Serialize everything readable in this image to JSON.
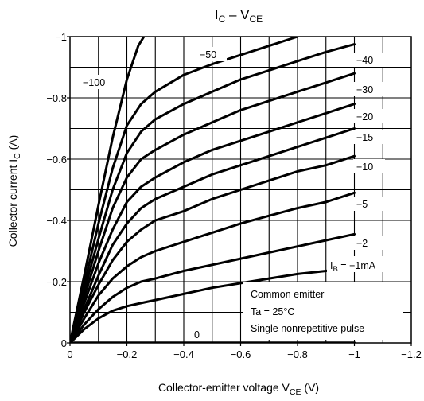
{
  "chart_data": {
    "type": "line",
    "title": {
      "main": "I",
      "main_sub": "C",
      "sep": " – V",
      "sep_sub": "CE"
    },
    "xlabel": {
      "text": "Collector-emitter voltage   V",
      "sub": "CE",
      "unit": "   (V)"
    },
    "ylabel": {
      "text": "Collector current   I",
      "sub": "C",
      "unit": "   (A)"
    },
    "xlim": [
      0,
      -1.2
    ],
    "ylim": [
      0,
      -1.0
    ],
    "x_ticks": [
      {
        "v": 0,
        "label": "0"
      },
      {
        "v": -0.2,
        "label": "−0.2"
      },
      {
        "v": -0.4,
        "label": "−0.4"
      },
      {
        "v": -0.6,
        "label": "−0.6"
      },
      {
        "v": -0.8,
        "label": "−0.8"
      },
      {
        "v": -1.0,
        "label": "−1"
      },
      {
        "v": -1.2,
        "label": "−1.2"
      }
    ],
    "y_ticks": [
      {
        "v": 0,
        "label": "0"
      },
      {
        "v": -0.2,
        "label": "−0.2"
      },
      {
        "v": -0.4,
        "label": "−0.4"
      },
      {
        "v": -0.6,
        "label": "−0.6"
      },
      {
        "v": -0.8,
        "label": "−0.8"
      },
      {
        "v": -1.0,
        "label": "−1"
      }
    ],
    "grid": true,
    "series": [
      {
        "name": "−100",
        "points": [
          [
            0,
            0
          ],
          [
            -0.05,
            -0.22
          ],
          [
            -0.1,
            -0.45
          ],
          [
            -0.15,
            -0.67
          ],
          [
            -0.2,
            -0.86
          ],
          [
            -0.24,
            -0.97
          ],
          [
            -0.26,
            -1.0
          ]
        ]
      },
      {
        "name": "−50",
        "points": [
          [
            0,
            0
          ],
          [
            -0.05,
            -0.19
          ],
          [
            -0.1,
            -0.39
          ],
          [
            -0.15,
            -0.57
          ],
          [
            -0.2,
            -0.71
          ],
          [
            -0.25,
            -0.78
          ],
          [
            -0.3,
            -0.82
          ],
          [
            -0.4,
            -0.875
          ],
          [
            -0.5,
            -0.91
          ],
          [
            -0.6,
            -0.94
          ],
          [
            -0.7,
            -0.97
          ],
          [
            -0.8,
            -1.0
          ]
        ]
      },
      {
        "name": "−40",
        "points": [
          [
            0,
            0
          ],
          [
            -0.05,
            -0.17
          ],
          [
            -0.1,
            -0.34
          ],
          [
            -0.15,
            -0.5
          ],
          [
            -0.2,
            -0.62
          ],
          [
            -0.25,
            -0.69
          ],
          [
            -0.3,
            -0.73
          ],
          [
            -0.4,
            -0.78
          ],
          [
            -0.5,
            -0.82
          ],
          [
            -0.6,
            -0.86
          ],
          [
            -0.7,
            -0.89
          ],
          [
            -0.8,
            -0.92
          ],
          [
            -0.9,
            -0.95
          ],
          [
            -1.0,
            -0.975
          ]
        ]
      },
      {
        "name": "−30",
        "points": [
          [
            0,
            0
          ],
          [
            -0.05,
            -0.15
          ],
          [
            -0.1,
            -0.3
          ],
          [
            -0.15,
            -0.44
          ],
          [
            -0.2,
            -0.54
          ],
          [
            -0.25,
            -0.6
          ],
          [
            -0.3,
            -0.63
          ],
          [
            -0.4,
            -0.68
          ],
          [
            -0.5,
            -0.72
          ],
          [
            -0.6,
            -0.76
          ],
          [
            -0.7,
            -0.79
          ],
          [
            -0.8,
            -0.82
          ],
          [
            -0.9,
            -0.85
          ],
          [
            -1.0,
            -0.88
          ]
        ]
      },
      {
        "name": "−20",
        "points": [
          [
            0,
            0
          ],
          [
            -0.05,
            -0.13
          ],
          [
            -0.1,
            -0.26
          ],
          [
            -0.15,
            -0.37
          ],
          [
            -0.2,
            -0.46
          ],
          [
            -0.25,
            -0.51
          ],
          [
            -0.3,
            -0.54
          ],
          [
            -0.4,
            -0.59
          ],
          [
            -0.5,
            -0.63
          ],
          [
            -0.6,
            -0.66
          ],
          [
            -0.7,
            -0.69
          ],
          [
            -0.8,
            -0.72
          ],
          [
            -0.9,
            -0.75
          ],
          [
            -1.0,
            -0.78
          ]
        ]
      },
      {
        "name": "−15",
        "points": [
          [
            0,
            0
          ],
          [
            -0.05,
            -0.11
          ],
          [
            -0.1,
            -0.22
          ],
          [
            -0.15,
            -0.32
          ],
          [
            -0.2,
            -0.39
          ],
          [
            -0.25,
            -0.44
          ],
          [
            -0.3,
            -0.47
          ],
          [
            -0.4,
            -0.51
          ],
          [
            -0.5,
            -0.55
          ],
          [
            -0.6,
            -0.58
          ],
          [
            -0.7,
            -0.61
          ],
          [
            -0.8,
            -0.64
          ],
          [
            -0.9,
            -0.67
          ],
          [
            -1.0,
            -0.7
          ]
        ]
      },
      {
        "name": "−10",
        "points": [
          [
            0,
            0
          ],
          [
            -0.05,
            -0.1
          ],
          [
            -0.1,
            -0.19
          ],
          [
            -0.15,
            -0.27
          ],
          [
            -0.2,
            -0.33
          ],
          [
            -0.25,
            -0.37
          ],
          [
            -0.3,
            -0.4
          ],
          [
            -0.4,
            -0.43
          ],
          [
            -0.5,
            -0.47
          ],
          [
            -0.6,
            -0.5
          ],
          [
            -0.7,
            -0.53
          ],
          [
            -0.8,
            -0.56
          ],
          [
            -0.9,
            -0.58
          ],
          [
            -1.0,
            -0.61
          ]
        ]
      },
      {
        "name": "−5",
        "points": [
          [
            0,
            0
          ],
          [
            -0.05,
            -0.08
          ],
          [
            -0.1,
            -0.155
          ],
          [
            -0.15,
            -0.21
          ],
          [
            -0.2,
            -0.25
          ],
          [
            -0.25,
            -0.28
          ],
          [
            -0.3,
            -0.3
          ],
          [
            -0.4,
            -0.33
          ],
          [
            -0.5,
            -0.36
          ],
          [
            -0.6,
            -0.39
          ],
          [
            -0.7,
            -0.415
          ],
          [
            -0.8,
            -0.44
          ],
          [
            -0.9,
            -0.46
          ],
          [
            -1.0,
            -0.49
          ]
        ]
      },
      {
        "name": "−2",
        "points": [
          [
            0,
            0
          ],
          [
            -0.05,
            -0.06
          ],
          [
            -0.1,
            -0.11
          ],
          [
            -0.15,
            -0.15
          ],
          [
            -0.2,
            -0.18
          ],
          [
            -0.25,
            -0.2
          ],
          [
            -0.3,
            -0.21
          ],
          [
            -0.4,
            -0.235
          ],
          [
            -0.5,
            -0.255
          ],
          [
            -0.6,
            -0.275
          ],
          [
            -0.7,
            -0.295
          ],
          [
            -0.8,
            -0.315
          ],
          [
            -0.9,
            -0.335
          ],
          [
            -1.0,
            -0.355
          ]
        ]
      },
      {
        "name": "−1mA",
        "points": [
          [
            0,
            0
          ],
          [
            -0.05,
            -0.045
          ],
          [
            -0.1,
            -0.08
          ],
          [
            -0.15,
            -0.105
          ],
          [
            -0.2,
            -0.12
          ],
          [
            -0.25,
            -0.13
          ],
          [
            -0.3,
            -0.14
          ],
          [
            -0.4,
            -0.16
          ],
          [
            -0.5,
            -0.18
          ],
          [
            -0.6,
            -0.195
          ],
          [
            -0.7,
            -0.21
          ],
          [
            -0.8,
            -0.225
          ],
          [
            -0.9,
            -0.235
          ],
          [
            -1.0,
            -0.245
          ]
        ]
      },
      {
        "name": "0",
        "points": [
          [
            0,
            0
          ],
          [
            -1.0,
            0
          ]
        ]
      }
    ],
    "curve_labels": [
      {
        "series": "−100",
        "text": "−100"
      },
      {
        "series": "−50",
        "text": "−50"
      },
      {
        "series": "−40",
        "text": "−40"
      },
      {
        "series": "−30",
        "text": "−30"
      },
      {
        "series": "−20",
        "text": "−20"
      },
      {
        "series": "−15",
        "text": "−15"
      },
      {
        "series": "−10",
        "text": "−10"
      },
      {
        "series": "−5",
        "text": "−5"
      },
      {
        "series": "−2",
        "text": "−2"
      },
      {
        "series": "−1mA",
        "text": "I",
        "sub": "B",
        "rest": " = −1mA"
      },
      {
        "series": "0",
        "text": "0"
      }
    ],
    "annotation": [
      "Common emitter",
      "Ta = 25°C",
      "Single nonrepetitive pulse"
    ]
  }
}
